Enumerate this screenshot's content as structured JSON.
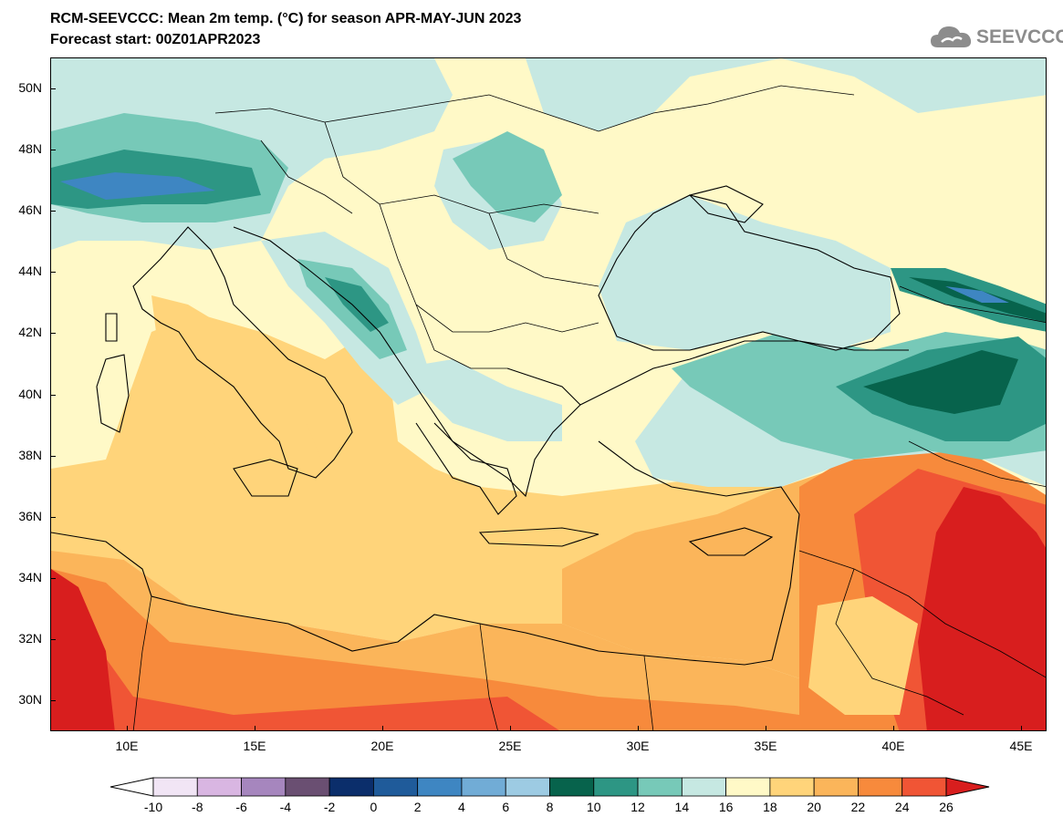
{
  "title_line1": "RCM-SEEVCCC: Mean 2m temp. (°C) for season APR-MAY-JUN 2023",
  "title_line2": "Forecast start: 00Z01APR2023",
  "logo_text": "SEEVCCC",
  "logo_icon": "cloud-icon",
  "map": {
    "lon_range": [
      7,
      46
    ],
    "lat_range": [
      29,
      51
    ],
    "lat_labels": [
      "50N",
      "48N",
      "46N",
      "44N",
      "42N",
      "40N",
      "38N",
      "36N",
      "34N",
      "32N",
      "30N"
    ],
    "lon_labels": [
      "10E",
      "15E",
      "20E",
      "25E",
      "30E",
      "35E",
      "40E",
      "45E"
    ],
    "lat_values": [
      50,
      48,
      46,
      44,
      42,
      40,
      38,
      36,
      34,
      32,
      30
    ],
    "lon_values": [
      10,
      15,
      20,
      25,
      30,
      35,
      40,
      45
    ]
  },
  "colorbar": {
    "labels": [
      "-10",
      "-8",
      "-6",
      "-4",
      "-2",
      "0",
      "2",
      "4",
      "6",
      "8",
      "10",
      "12",
      "14",
      "16",
      "18",
      "20",
      "22",
      "24",
      "26"
    ],
    "colors": [
      "#f1e5f5",
      "#d9b6e2",
      "#a686be",
      "#6a4f72",
      "#0b2e6b",
      "#1f5b9a",
      "#3e86c2",
      "#71acd6",
      "#9dcbe3",
      "#07634c",
      "#2d9684",
      "#77c9b8",
      "#c6e8e2",
      "#fff9c7",
      "#ffd47a",
      "#fbb55a",
      "#f78a3c",
      "#f05535"
    ],
    "under_color": "#ffffff",
    "over_color": "#d81e1e"
  },
  "field_colors": {
    "sea_main": "#ffd47a",
    "sea_south": "#fbb55a",
    "africa_hot": "#f05535",
    "africa_hottest": "#d81e1e",
    "black_sea": "#c6e8e2",
    "anatolia": "#77c9b8",
    "mountains": "#2d9684",
    "peaks": "#07634c",
    "alps_cold": "#3e86c2",
    "lowland": "#fff9c7"
  }
}
